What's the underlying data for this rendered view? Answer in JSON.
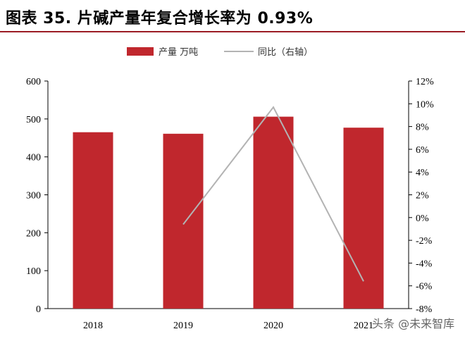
{
  "header": {
    "title": "图表 35. 片碱产量年复合增长率为 0.93%"
  },
  "watermark": "头条 @未来智库",
  "colors": {
    "bar": "#c0272d",
    "line": "#b3b3b3",
    "axis": "#000000",
    "title_rule": "#9b1c24"
  },
  "chart_data": {
    "type": "bar",
    "title": "图表 35. 片碱产量年复合增长率为 0.93%",
    "categories": [
      "2018",
      "2019",
      "2020",
      "2021"
    ],
    "series": [
      {
        "name": "产量 万吨",
        "type": "bar",
        "axis": "left",
        "values": [
          465,
          461,
          506,
          477
        ]
      },
      {
        "name": "同比（右轴）",
        "type": "line",
        "axis": "right",
        "values": [
          null,
          -0.6,
          9.7,
          -5.6
        ]
      }
    ],
    "y_left": {
      "min": 0,
      "max": 600,
      "step": 100,
      "tick_labels": [
        "0",
        "100",
        "200",
        "300",
        "400",
        "500",
        "600"
      ]
    },
    "y_right": {
      "min": -8,
      "max": 12,
      "step": 2,
      "tick_labels": [
        "-8%",
        "-6%",
        "-4%",
        "-2%",
        "0%",
        "2%",
        "4%",
        "6%",
        "8%",
        "10%",
        "12%"
      ]
    },
    "legend_position": "top-center",
    "grid": false
  }
}
